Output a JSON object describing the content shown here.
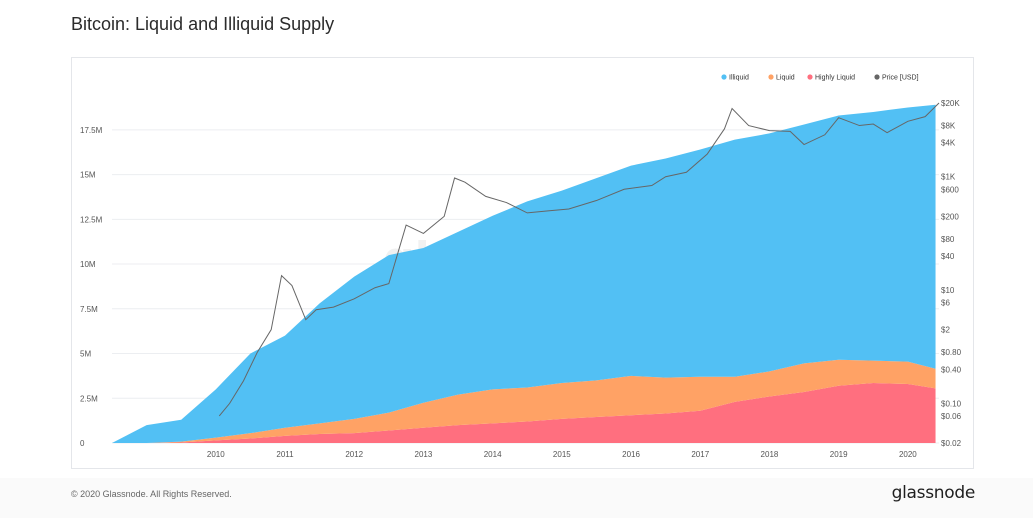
{
  "page": {
    "title": "Bitcoin: Liquid and Illiquid Supply",
    "copyright": "© 2020 Glassnode. All Rights Reserved.",
    "brand": "glassnode",
    "watermark": "glassnode"
  },
  "chart_data": {
    "type": "area",
    "title": "Bitcoin: Liquid and Illiquid Supply",
    "stacked": true,
    "x": [
      2009.0,
      2009.5,
      2010.0,
      2010.5,
      2011.0,
      2011.5,
      2012.0,
      2012.5,
      2013.0,
      2013.5,
      2014.0,
      2014.5,
      2015.0,
      2015.5,
      2016.0,
      2016.5,
      2017.0,
      2017.5,
      2018.0,
      2018.5,
      2019.0,
      2019.5,
      2020.0,
      2020.5,
      2020.9
    ],
    "xticks": [
      "2010",
      "2011",
      "2012",
      "2013",
      "2014",
      "2015",
      "2016",
      "2017",
      "2018",
      "2019",
      "2020"
    ],
    "xlim": [
      2009.0,
      2020.95
    ],
    "yticks_left": [
      "0",
      "2.5M",
      "5M",
      "7.5M",
      "10M",
      "12.5M",
      "15M",
      "17.5M"
    ],
    "ylim_left": [
      0,
      19000000
    ],
    "yticks_right": [
      "$20K",
      "$8K",
      "$4K",
      "$1K",
      "$600",
      "$200",
      "$80",
      "$40",
      "$10",
      "$6",
      "$2",
      "$0.80",
      "$0.40",
      "$0.10",
      "$0.06",
      "$0.02"
    ],
    "ylim_right": [
      0.02,
      20000
    ],
    "y_right_scale": "log",
    "legend_position": "top-right",
    "grid": true,
    "series": [
      {
        "name": "Highly Liquid",
        "color": "#ff6f7f",
        "values": [
          0,
          0,
          30000,
          150000,
          250000,
          400000,
          500000,
          550000,
          700000,
          850000,
          1000000,
          1100000,
          1200000,
          1350000,
          1450000,
          1550000,
          1650000,
          1800000,
          2300000,
          2600000,
          2850000,
          3200000,
          3350000,
          3300000,
          3050000
        ]
      },
      {
        "name": "Liquid",
        "color": "#ffa265",
        "values": [
          0,
          0,
          50000,
          150000,
          300000,
          450000,
          600000,
          800000,
          1000000,
          1400000,
          1700000,
          1900000,
          1900000,
          2000000,
          2050000,
          2200000,
          2000000,
          1900000,
          1400000,
          1400000,
          1600000,
          1450000,
          1250000,
          1250000,
          1100000
        ]
      },
      {
        "name": "Illiquid",
        "color": "#52c0f4",
        "values": [
          0,
          1000000,
          1220000,
          2700000,
          4450000,
          5150000,
          6700000,
          7950000,
          8800000,
          8650000,
          9100000,
          9700000,
          10400000,
          10750000,
          11300000,
          11750000,
          12250000,
          12700000,
          13250000,
          13300000,
          13350000,
          13650000,
          13900000,
          14200000,
          14750000
        ]
      },
      {
        "name": "Price [USD]",
        "color": "#666666",
        "axis": "right",
        "x": [
          2010.55,
          2010.7,
          2010.9,
          2011.1,
          2011.3,
          2011.45,
          2011.6,
          2011.8,
          2011.95,
          2012.2,
          2012.5,
          2012.8,
          2013.0,
          2013.25,
          2013.5,
          2013.8,
          2013.95,
          2014.1,
          2014.4,
          2014.7,
          2015.0,
          2015.3,
          2015.6,
          2016.0,
          2016.4,
          2016.8,
          2017.0,
          2017.3,
          2017.6,
          2017.85,
          2017.96,
          2018.2,
          2018.5,
          2018.8,
          2019.0,
          2019.3,
          2019.5,
          2019.8,
          2020.0,
          2020.2,
          2020.5,
          2020.75,
          2020.95
        ],
        "values": [
          0.06,
          0.1,
          0.25,
          0.8,
          2,
          18,
          12,
          3,
          4.5,
          5,
          7,
          11,
          13,
          140,
          100,
          200,
          950,
          800,
          450,
          350,
          230,
          250,
          270,
          380,
          600,
          700,
          1000,
          1200,
          2500,
          7000,
          16000,
          8000,
          6500,
          6300,
          3700,
          5500,
          11000,
          8000,
          8500,
          6000,
          9500,
          11500,
          20000
        ]
      }
    ]
  }
}
